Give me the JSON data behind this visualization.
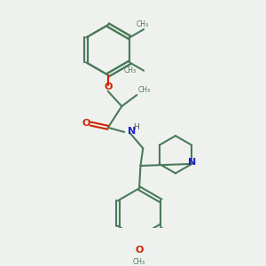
{
  "background_color": "#eff1ef",
  "bond_color": "#4a7a5a",
  "bond_width": 1.5,
  "o_color": "#cc2200",
  "n_color": "#2222cc",
  "figsize": [
    3.0,
    3.0
  ],
  "dpi": 100,
  "xlim": [
    0.05,
    0.95
  ],
  "ylim": [
    0.05,
    0.95
  ]
}
